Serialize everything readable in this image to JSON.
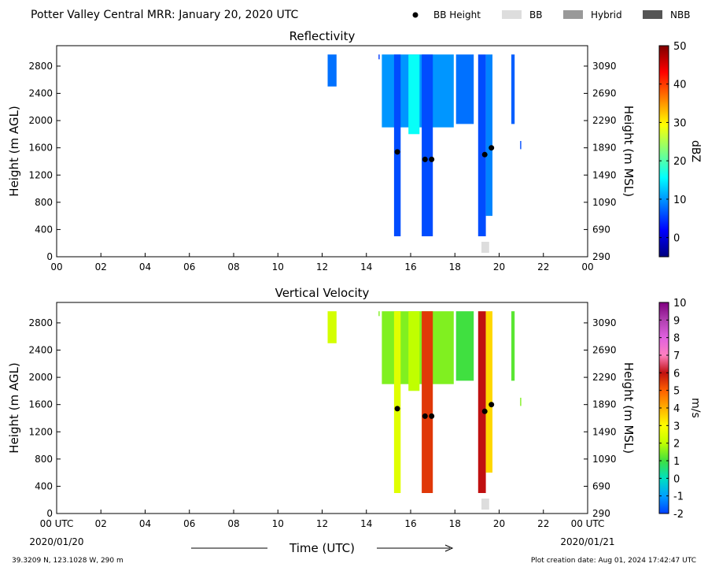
{
  "header": {
    "title": "Potter Valley Central MRR:  January 20, 2020 UTC",
    "legend": [
      {
        "label": "BB Height",
        "marker": "dot",
        "color": "#000000"
      },
      {
        "label": "BB",
        "marker": "rect",
        "color": "#dddddd"
      },
      {
        "label": "Hybrid",
        "marker": "rect",
        "color": "#999999"
      },
      {
        "label": "NBB",
        "marker": "rect",
        "color": "#555555"
      }
    ]
  },
  "footer": {
    "location": "39.3209 N, 123.1028 W, 290 m",
    "creation": "Plot creation date: Aug 01, 2024 17:42:47 UTC",
    "start_date": "2020/01/20",
    "end_date": "2020/01/21",
    "xlabel": "Time (UTC)"
  },
  "chart_data": [
    {
      "type": "heatmap",
      "title": "Reflectivity",
      "ylabel": "Height (m AGL)",
      "ylabel_right": "Height (m MSL)",
      "xlim": [
        0,
        24
      ],
      "ylim": [
        0,
        3100
      ],
      "x_ticks": [
        "00",
        "02",
        "04",
        "06",
        "08",
        "10",
        "12",
        "14",
        "16",
        "18",
        "20",
        "22",
        "00"
      ],
      "y_ticks": [
        0,
        400,
        800,
        1200,
        1600,
        2000,
        2400,
        2800
      ],
      "y_ticks_right": [
        290,
        690,
        1090,
        1490,
        1890,
        2290,
        2690,
        3090
      ],
      "colorbar": {
        "label": "dBZ",
        "range": [
          -5,
          50
        ],
        "ticks": [
          0,
          10,
          20,
          30,
          40,
          50
        ],
        "colors": [
          "#00007f",
          "#0000ff",
          "#007fff",
          "#00ffff",
          "#7fff7f",
          "#ffff00",
          "#ff7f00",
          "#ff0000",
          "#7f0000"
        ]
      },
      "echoes": [
        {
          "t_start": 12.25,
          "t_end": 12.65,
          "h_bottom": 2500,
          "h_top": 2970,
          "value": 8
        },
        {
          "t_start": 14.55,
          "t_end": 14.6,
          "h_bottom": 2900,
          "h_top": 2970,
          "value": 5
        },
        {
          "t_start": 14.7,
          "t_end": 17.95,
          "h_bottom": 1900,
          "h_top": 2970,
          "value": 10
        },
        {
          "t_start": 15.25,
          "t_end": 15.55,
          "h_bottom": 300,
          "h_top": 2970,
          "value": 6
        },
        {
          "t_start": 15.9,
          "t_end": 16.4,
          "h_bottom": 1800,
          "h_top": 2970,
          "value": 16
        },
        {
          "t_start": 16.5,
          "t_end": 17.0,
          "h_bottom": 300,
          "h_top": 2970,
          "value": 6
        },
        {
          "t_start": 18.05,
          "t_end": 18.85,
          "h_bottom": 1950,
          "h_top": 2970,
          "value": 8
        },
        {
          "t_start": 19.05,
          "t_end": 19.4,
          "h_bottom": 300,
          "h_top": 2970,
          "value": 6
        },
        {
          "t_start": 19.4,
          "t_end": 19.7,
          "h_bottom": 600,
          "h_top": 2970,
          "value": 9
        },
        {
          "t_start": 20.55,
          "t_end": 20.7,
          "h_bottom": 1950,
          "h_top": 2970,
          "value": 7
        },
        {
          "t_start": 20.95,
          "t_end": 21.0,
          "h_bottom": 1580,
          "h_top": 1700,
          "value": 6
        }
      ],
      "bb_points": [
        {
          "time": 15.4,
          "height": 1540
        },
        {
          "time": 16.65,
          "height": 1430
        },
        {
          "time": 16.95,
          "height": 1430
        },
        {
          "time": 19.35,
          "height": 1500
        },
        {
          "time": 19.65,
          "height": 1600
        }
      ],
      "bb_bars": [
        {
          "t_start": 19.2,
          "t_end": 19.55,
          "type": "BB"
        }
      ]
    },
    {
      "type": "heatmap",
      "title": "Vertical Velocity",
      "ylabel": "Height (m AGL)",
      "ylabel_right": "Height (m MSL)",
      "xlim": [
        0,
        24
      ],
      "ylim": [
        0,
        3100
      ],
      "x_ticks": [
        "00 UTC",
        "02",
        "04",
        "06",
        "08",
        "10",
        "12",
        "14",
        "16",
        "18",
        "20",
        "22",
        "00 UTC"
      ],
      "y_ticks": [
        0,
        400,
        800,
        1200,
        1600,
        2000,
        2400,
        2800
      ],
      "y_ticks_right": [
        290,
        690,
        1090,
        1490,
        1890,
        2290,
        2690,
        3090
      ],
      "colorbar": {
        "label": "m/s",
        "range": [
          -2,
          10
        ],
        "ticks": [
          -2,
          -1,
          0,
          1,
          2,
          3,
          4,
          5,
          6,
          7,
          8,
          9,
          10
        ],
        "colors": [
          "#0040ff",
          "#00a0ff",
          "#00e0c0",
          "#40e040",
          "#c0ff00",
          "#ffff00",
          "#ffb000",
          "#ff6000",
          "#c01010",
          "#ff80c0",
          "#e060e0",
          "#b040b0",
          "#800080"
        ]
      },
      "echoes": [
        {
          "t_start": 12.25,
          "t_end": 12.65,
          "h_bottom": 2500,
          "h_top": 2970,
          "value": 2.3
        },
        {
          "t_start": 14.55,
          "t_end": 14.6,
          "h_bottom": 2900,
          "h_top": 2970,
          "value": 1.5
        },
        {
          "t_start": 14.7,
          "t_end": 17.95,
          "h_bottom": 1900,
          "h_top": 2970,
          "value": 1.5
        },
        {
          "t_start": 15.25,
          "t_end": 15.55,
          "h_bottom": 300,
          "h_top": 2970,
          "value": 2.5
        },
        {
          "t_start": 15.9,
          "t_end": 16.4,
          "h_bottom": 1800,
          "h_top": 2970,
          "value": 2.0
        },
        {
          "t_start": 16.5,
          "t_end": 17.0,
          "h_bottom": 300,
          "h_top": 2970,
          "value": 5.5
        },
        {
          "t_start": 18.05,
          "t_end": 18.85,
          "h_bottom": 1950,
          "h_top": 2970,
          "value": 1.0
        },
        {
          "t_start": 19.05,
          "t_end": 19.4,
          "h_bottom": 300,
          "h_top": 2970,
          "value": 6.0
        },
        {
          "t_start": 19.4,
          "t_end": 19.7,
          "h_bottom": 600,
          "h_top": 2970,
          "value": 3.5
        },
        {
          "t_start": 20.55,
          "t_end": 20.7,
          "h_bottom": 1950,
          "h_top": 2970,
          "value": 1.2
        },
        {
          "t_start": 20.95,
          "t_end": 21.0,
          "h_bottom": 1580,
          "h_top": 1700,
          "value": 1.5
        }
      ],
      "bb_points": [
        {
          "time": 15.4,
          "height": 1540
        },
        {
          "time": 16.65,
          "height": 1430
        },
        {
          "time": 16.95,
          "height": 1430
        },
        {
          "time": 19.35,
          "height": 1500
        },
        {
          "time": 19.65,
          "height": 1600
        }
      ],
      "bb_bars": [
        {
          "t_start": 19.2,
          "t_end": 19.55,
          "type": "BB"
        }
      ]
    }
  ]
}
